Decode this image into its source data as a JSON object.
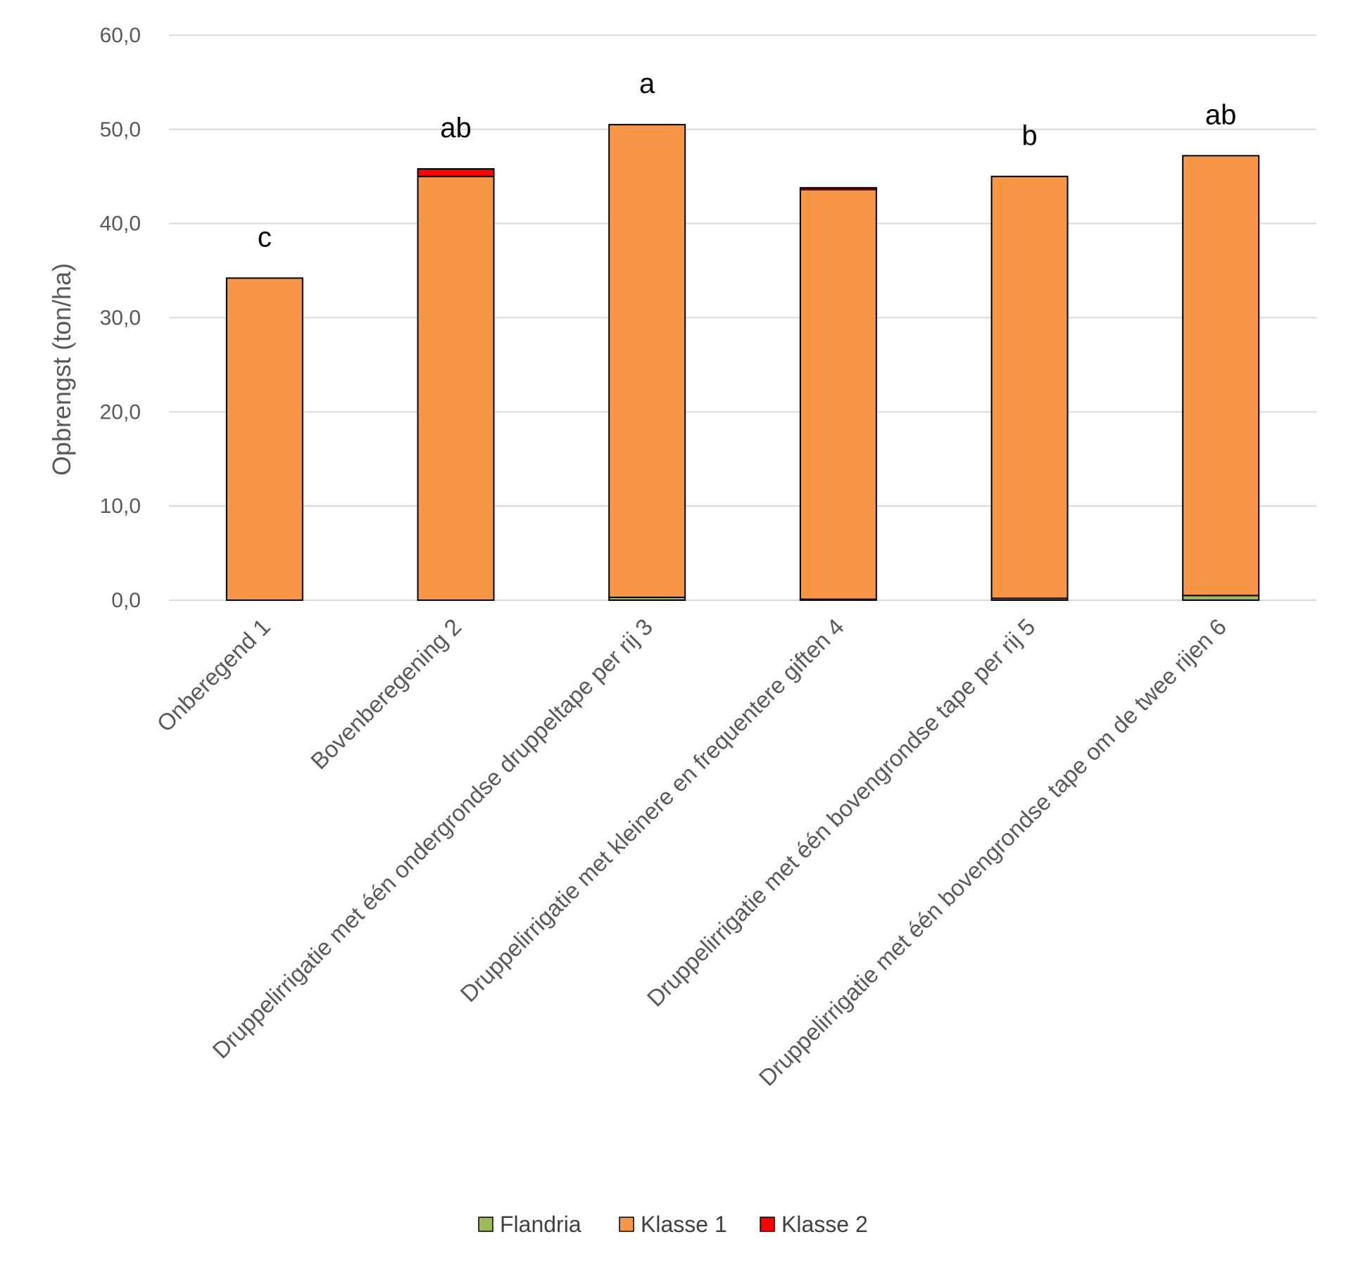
{
  "chart_data": {
    "type": "bar",
    "stacked": true,
    "title": "",
    "xlabel": "",
    "ylabel": "Opbrengst (ton/ha)",
    "ylim": [
      0,
      60
    ],
    "yticks": [
      "0,0",
      "10,0",
      "20,0",
      "30,0",
      "40,0",
      "50,0",
      "60,0"
    ],
    "grid": true,
    "legend_position": "bottom",
    "categories": [
      "Onberegend 1",
      "Bovenberegening 2",
      "Druppelirrigatie met één ondergrondse druppeltape per rij 3",
      "Druppelirrigatie met kleinere en frequentere giften 4",
      "Druppelirrigatie met één bovengrondse tape per rij 5",
      "Druppelirrigatie met één bovengrondse tape om de twee rijen 6"
    ],
    "series": [
      {
        "name": "Flandria",
        "color": "#9BBB59",
        "values": [
          0.0,
          0.0,
          0.3,
          0.1,
          0.2,
          0.5
        ],
        "error": [
          0.0,
          0.0,
          0.4,
          0.1,
          0.2,
          0.6
        ]
      },
      {
        "name": "Klasse 1",
        "color": "#F79646",
        "values": [
          34.2,
          45.0,
          50.2,
          43.5,
          44.8,
          46.7
        ]
      },
      {
        "name": "Klasse 2",
        "color": "#FF0000",
        "values": [
          0.0,
          0.8,
          0.0,
          0.2,
          0.0,
          0.0
        ]
      }
    ],
    "significance_labels": [
      "c",
      "ab",
      "a",
      "",
      "b",
      "ab"
    ]
  }
}
